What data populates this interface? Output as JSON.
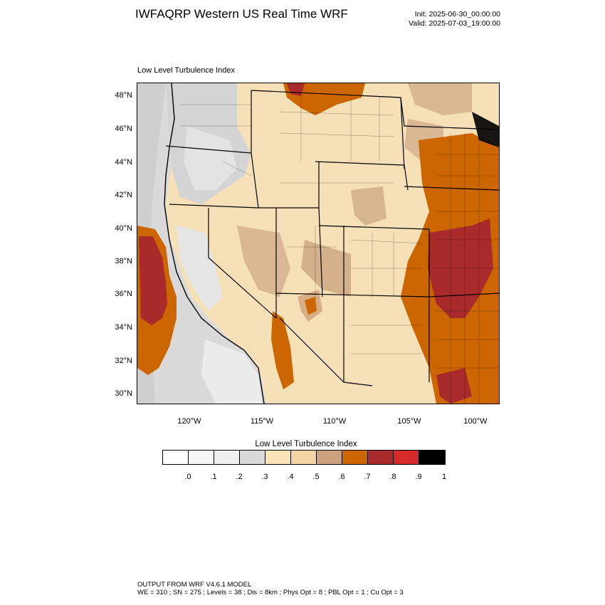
{
  "header": {
    "title": "IWFAQRP Western US Real Time WRF",
    "init": "Init: 2025-06-30_00:00:00",
    "valid": "Valid: 2025-07-03_19:00:00"
  },
  "plot": {
    "label": "Low Level Turbulence Index",
    "y_ticks": [
      "48°N",
      "46°N",
      "44°N",
      "42°N",
      "40°N",
      "38°N",
      "36°N",
      "34°N",
      "32°N",
      "30°N"
    ],
    "x_ticks": [
      "120°W",
      "115°W",
      "110°W",
      "105°W",
      "100°W"
    ]
  },
  "colorbar": {
    "title": "Low Level Turbulence Index",
    "colors": [
      "#ffffff",
      "#f7f7f7",
      "#efefef",
      "#d9d9d9",
      "#fbe4b7",
      "#f4d3a5",
      "#cca27e",
      "#cc6600",
      "#a82a2a",
      "#d42a2a",
      "#000000"
    ],
    "labels": [
      ".0",
      ".1",
      ".2",
      ".3",
      ".4",
      ".5",
      ".6",
      ".7",
      ".8",
      ".9",
      "1"
    ]
  },
  "footer": {
    "line1": "OUTPUT FROM WRF V4.6.1 MODEL",
    "line2": "WE = 310 ; SN = 275 ; Levels = 38 ; Dis = 8km ; Phys Opt = 8 ; PBL Opt = 1 ; Cu Opt = 3"
  }
}
